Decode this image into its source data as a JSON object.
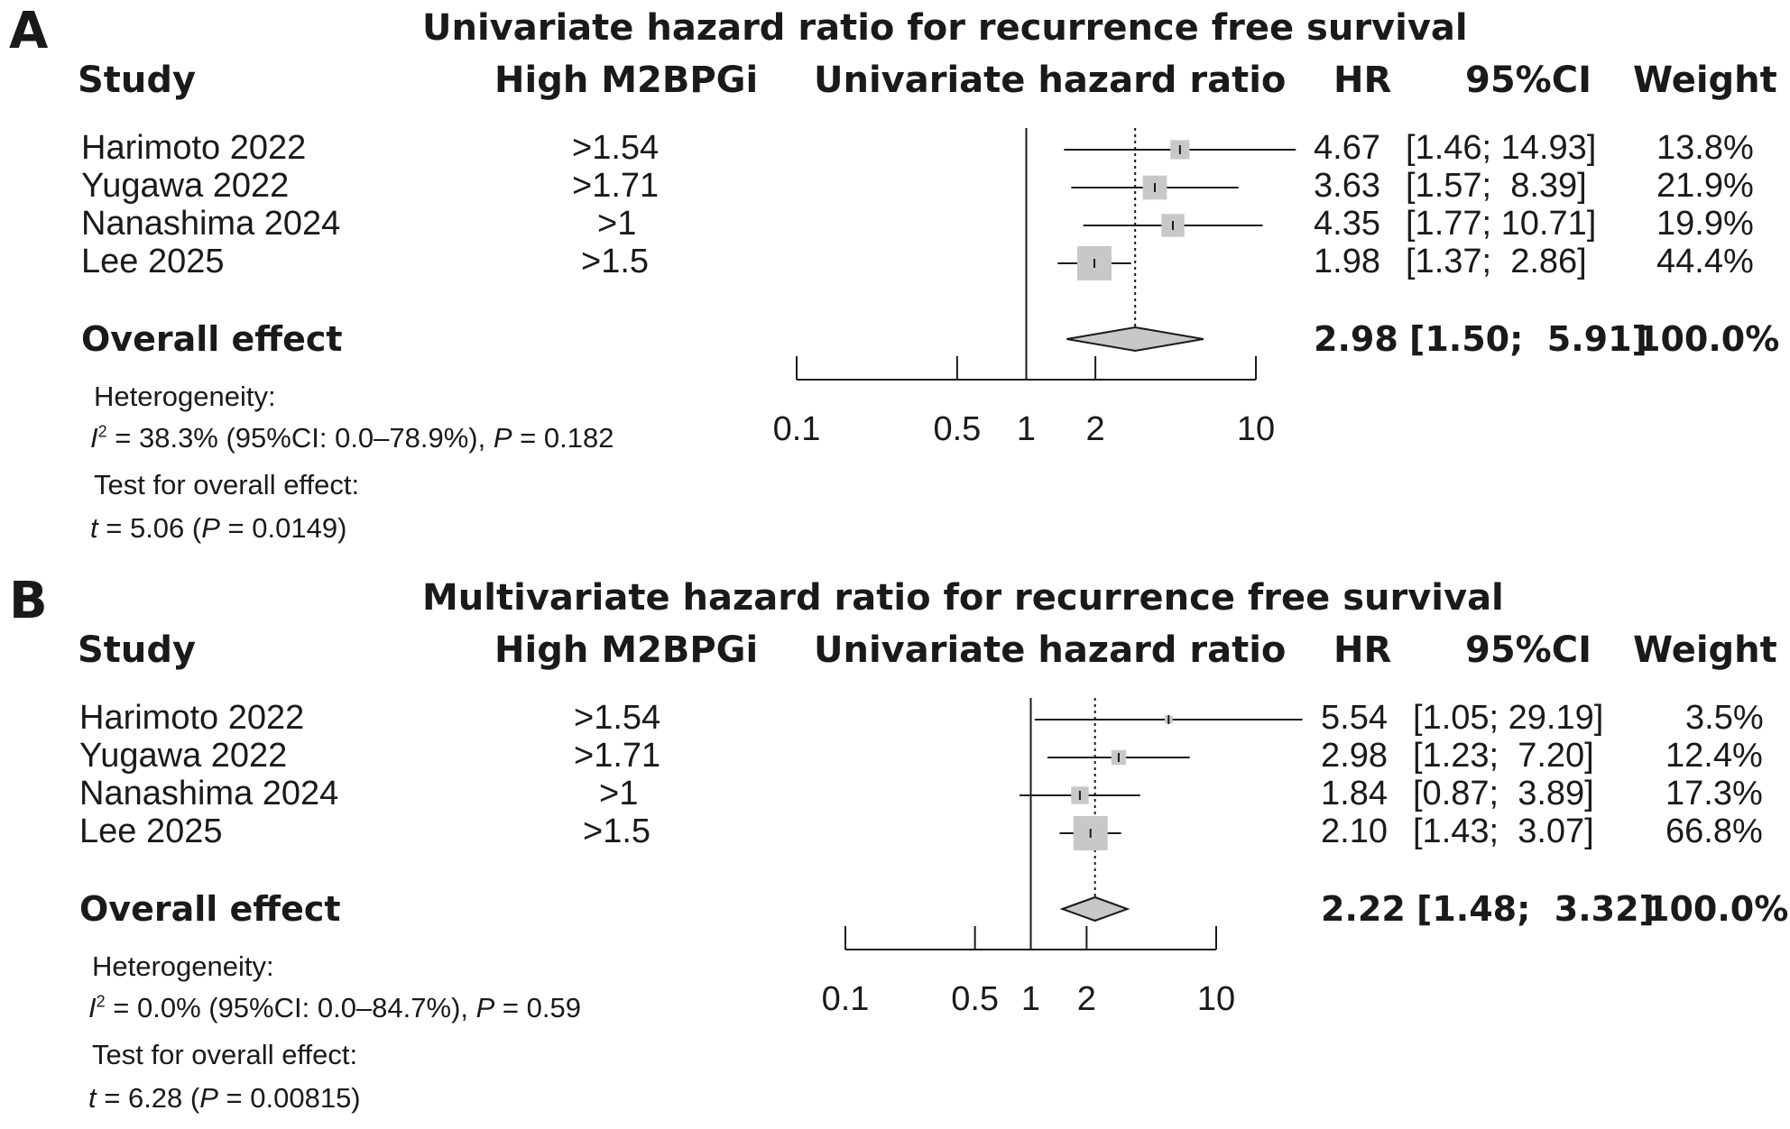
{
  "chart_data": [
    {
      "type": "forest",
      "panel_letter": "A",
      "title": "Univariate hazard ratio for recurrence free survival",
      "columns": {
        "study": "Study",
        "cutoff": "High M2BPGi",
        "plot": "Univariate hazard ratio",
        "hr": "HR",
        "ci": "95%CI",
        "weight": "Weight"
      },
      "studies": [
        {
          "name": "Harimoto 2022",
          "cutoff": ">1.54",
          "hr": 4.67,
          "lower": 1.46,
          "upper": 14.93,
          "weight": 13.8,
          "hr_text": "4.67",
          "ci_text": "[1.46; 14.93]",
          "weight_text": "13.8%"
        },
        {
          "name": "Yugawa 2022",
          "cutoff": ">1.71",
          "hr": 3.63,
          "lower": 1.57,
          "upper": 8.39,
          "weight": 21.9,
          "hr_text": "3.63",
          "ci_text": "[1.57;  8.39]",
          "weight_text": "21.9%"
        },
        {
          "name": "Nanashima 2024",
          "cutoff": ">1",
          "hr": 4.35,
          "lower": 1.77,
          "upper": 10.71,
          "weight": 19.9,
          "hr_text": "4.35",
          "ci_text": "[1.77; 10.71]",
          "weight_text": "19.9%"
        },
        {
          "name": "Lee 2025",
          "cutoff": ">1.5",
          "hr": 1.98,
          "lower": 1.37,
          "upper": 2.86,
          "weight": 44.4,
          "hr_text": "1.98",
          "ci_text": "[1.37;  2.86]",
          "weight_text": "44.4%"
        }
      ],
      "overall": {
        "label": "Overall effect",
        "hr": 2.98,
        "lower": 1.5,
        "upper": 5.91,
        "hr_text": "2.98",
        "ci_text": "[1.50;  5.91]",
        "weight_text": "100.0%"
      },
      "x_ticks": [
        0.1,
        0.5,
        1,
        2,
        10
      ],
      "x_tick_labels": [
        "0.1",
        "0.5",
        "1",
        "2",
        "10"
      ],
      "x_scale": "log",
      "xlim": [
        0.1,
        10
      ],
      "heterogeneity": {
        "heading": "Heterogeneity:",
        "i2_symbol": "I",
        "i2_sup": "2",
        "i2_text": " = 38.3% (95%CI: 0.0–78.9%), ",
        "p_symbol": "P",
        "p_text": " = 0.182"
      },
      "overall_test": {
        "heading": "Test for overall effect:",
        "t_symbol": "t",
        "t_text": " = 5.06 (",
        "p_symbol": "P",
        "p_text": " = 0.0149)"
      }
    },
    {
      "type": "forest",
      "panel_letter": "B",
      "title": "Multivariate hazard ratio for recurrence free survival",
      "columns": {
        "study": "Study",
        "cutoff": "High M2BPGi",
        "plot": "Univariate hazard ratio",
        "hr": "HR",
        "ci": "95%CI",
        "weight": "Weight"
      },
      "studies": [
        {
          "name": "Harimoto 2022",
          "cutoff": ">1.54",
          "hr": 5.54,
          "lower": 1.05,
          "upper": 29.19,
          "weight": 3.5,
          "hr_text": "5.54",
          "ci_text": "[1.05; 29.19]",
          "weight_text": "3.5%"
        },
        {
          "name": "Yugawa 2022",
          "cutoff": ">1.71",
          "hr": 2.98,
          "lower": 1.23,
          "upper": 7.2,
          "weight": 12.4,
          "hr_text": "2.98",
          "ci_text": "[1.23;  7.20]",
          "weight_text": "12.4%"
        },
        {
          "name": "Nanashima 2024",
          "cutoff": ">1",
          "hr": 1.84,
          "lower": 0.87,
          "upper": 3.89,
          "weight": 17.3,
          "hr_text": "1.84",
          "ci_text": "[0.87;  3.89]",
          "weight_text": "17.3%"
        },
        {
          "name": "Lee 2025",
          "cutoff": ">1.5",
          "hr": 2.1,
          "lower": 1.43,
          "upper": 3.07,
          "weight": 66.8,
          "hr_text": "2.10",
          "ci_text": "[1.43;  3.07]",
          "weight_text": "66.8%"
        }
      ],
      "overall": {
        "label": "Overall effect",
        "hr": 2.22,
        "lower": 1.48,
        "upper": 3.32,
        "hr_text": "2.22",
        "ci_text": "[1.48;  3.32]",
        "weight_text": "100.0%"
      },
      "x_ticks": [
        0.1,
        0.5,
        1,
        2,
        10
      ],
      "x_tick_labels": [
        "0.1",
        "0.5",
        "1",
        "2",
        "10"
      ],
      "x_scale": "log",
      "xlim": [
        0.1,
        10
      ],
      "heterogeneity": {
        "heading": "Heterogeneity:",
        "i2_symbol": "I",
        "i2_sup": "2",
        "i2_text": " = 0.0% (95%CI: 0.0–84.7%), ",
        "p_symbol": "P",
        "p_text": " = 0.59"
      },
      "overall_test": {
        "heading": "Test for overall effect:",
        "t_symbol": "t",
        "t_text": " = 6.28 (",
        "p_symbol": "P",
        "p_text": " = 0.00815)"
      }
    }
  ]
}
